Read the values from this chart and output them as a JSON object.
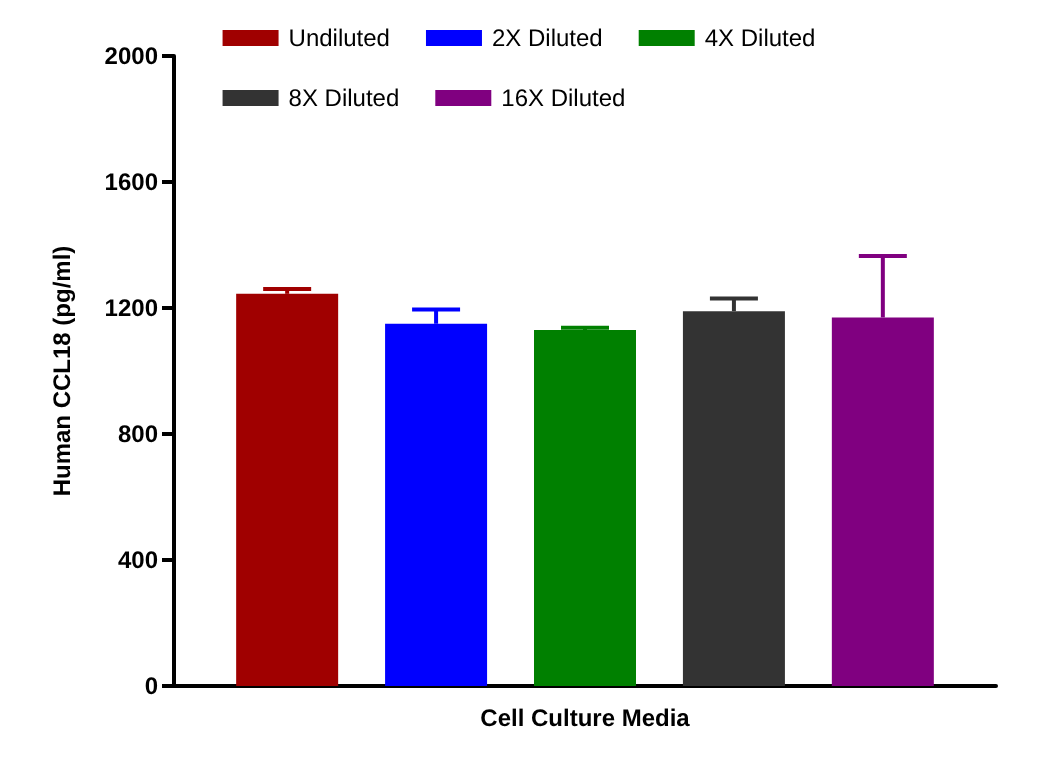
{
  "chart_data": {
    "type": "bar",
    "ylabel": "Human CCL18 (pg/ml)",
    "categories": [
      "Cell Culture Media"
    ],
    "series": [
      {
        "name": "Undiluted",
        "color": "#a00000",
        "values": [
          1245
        ],
        "errors": [
          [
            1245,
            1260
          ]
        ]
      },
      {
        "name": "2X Diluted",
        "color": "#0000ff",
        "values": [
          1150
        ],
        "errors": [
          [
            1150,
            1195
          ]
        ]
      },
      {
        "name": "4X Diluted",
        "color": "#008000",
        "values": [
          1130
        ],
        "errors": [
          [
            1130,
            1137
          ]
        ]
      },
      {
        "name": "8X Diluted",
        "color": "#333333",
        "values": [
          1190
        ],
        "errors": [
          [
            1190,
            1230
          ]
        ]
      },
      {
        "name": "16X Diluted",
        "color": "#800080",
        "values": [
          1170
        ],
        "errors": [
          [
            1170,
            1365
          ]
        ]
      }
    ],
    "ylim": [
      0,
      2000
    ],
    "yticks": [
      0,
      400,
      800,
      1200,
      1600,
      2000
    ],
    "grid": false,
    "legend": "top"
  }
}
